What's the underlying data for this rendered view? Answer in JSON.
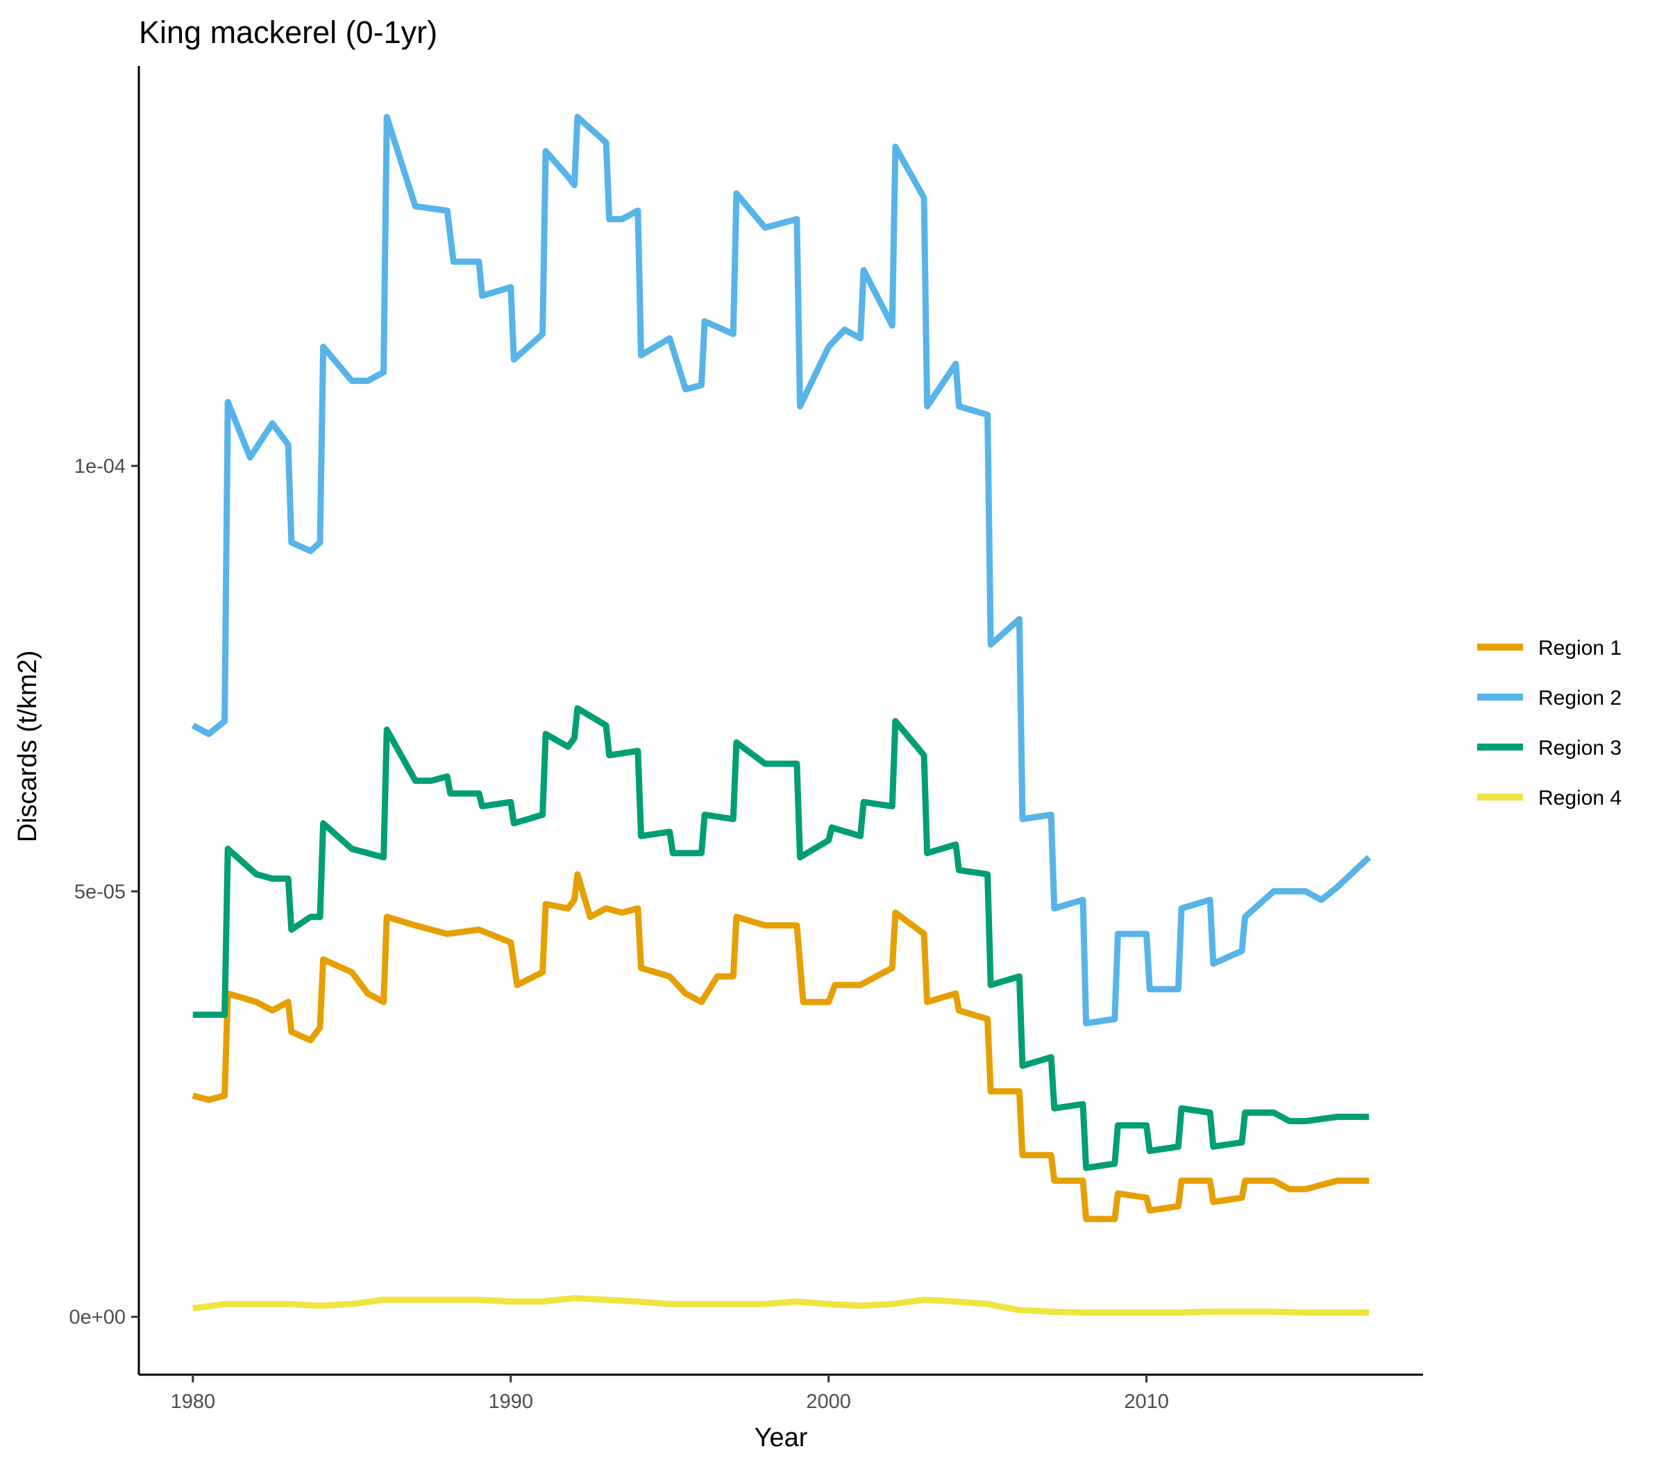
{
  "chart_data": {
    "type": "line",
    "title": "King mackerel (0-1yr)",
    "xlabel": "Year",
    "ylabel": "Discards (t/km2)",
    "xlim": [
      1978.3,
      2018.7
    ],
    "ylim": [
      -6.8e-06,
      0.000147
    ],
    "x_ticks": [
      1980,
      1990,
      2000,
      2010
    ],
    "x_tick_labels": [
      "1980",
      "1990",
      "2000",
      "2010"
    ],
    "y_ticks": [
      0,
      5e-05,
      0.0001
    ],
    "y_tick_labels": [
      "0e+00",
      "5e-05",
      "1e-04"
    ],
    "grid": false,
    "legend_position": "right",
    "series": [
      {
        "name": "Region 1",
        "color": "#E69F00",
        "points": [
          [
            1980.0,
            2.6e-05
          ],
          [
            1980.5,
            2.55e-05
          ],
          [
            1981.0,
            2.6e-05
          ],
          [
            1981.1,
            3.8e-05
          ],
          [
            1982.0,
            3.7e-05
          ],
          [
            1982.5,
            3.6e-05
          ],
          [
            1983.0,
            3.7e-05
          ],
          [
            1983.1,
            3.35e-05
          ],
          [
            1983.7,
            3.25e-05
          ],
          [
            1984.0,
            3.4e-05
          ],
          [
            1984.1,
            4.2e-05
          ],
          [
            1985.0,
            4.05e-05
          ],
          [
            1985.5,
            3.8e-05
          ],
          [
            1986.0,
            3.7e-05
          ],
          [
            1986.1,
            4.7e-05
          ],
          [
            1987.0,
            4.6e-05
          ],
          [
            1988.0,
            4.5e-05
          ],
          [
            1989.0,
            4.55e-05
          ],
          [
            1990.0,
            4.4e-05
          ],
          [
            1990.2,
            3.9e-05
          ],
          [
            1991.0,
            4.05e-05
          ],
          [
            1991.1,
            4.85e-05
          ],
          [
            1991.8,
            4.8e-05
          ],
          [
            1992.0,
            4.9e-05
          ],
          [
            1992.1,
            5.2e-05
          ],
          [
            1992.5,
            4.7e-05
          ],
          [
            1993.0,
            4.8e-05
          ],
          [
            1993.5,
            4.75e-05
          ],
          [
            1994.0,
            4.8e-05
          ],
          [
            1994.1,
            4.1e-05
          ],
          [
            1995.0,
            4e-05
          ],
          [
            1995.5,
            3.8e-05
          ],
          [
            1996.0,
            3.7e-05
          ],
          [
            1996.5,
            4e-05
          ],
          [
            1997.0,
            4e-05
          ],
          [
            1997.1,
            4.7e-05
          ],
          [
            1998.0,
            4.6e-05
          ],
          [
            1999.0,
            4.6e-05
          ],
          [
            1999.2,
            3.7e-05
          ],
          [
            2000.0,
            3.7e-05
          ],
          [
            2000.2,
            3.9e-05
          ],
          [
            2001.0,
            3.9e-05
          ],
          [
            2001.5,
            4e-05
          ],
          [
            2002.0,
            4.1e-05
          ],
          [
            2002.1,
            4.75e-05
          ],
          [
            2003.0,
            4.5e-05
          ],
          [
            2003.1,
            3.7e-05
          ],
          [
            2004.0,
            3.8e-05
          ],
          [
            2004.1,
            3.6e-05
          ],
          [
            2005.0,
            3.5e-05
          ],
          [
            2005.1,
            2.65e-05
          ],
          [
            2006.0,
            2.65e-05
          ],
          [
            2006.1,
            1.9e-05
          ],
          [
            2007.0,
            1.9e-05
          ],
          [
            2007.1,
            1.6e-05
          ],
          [
            2008.0,
            1.6e-05
          ],
          [
            2008.1,
            1.15e-05
          ],
          [
            2009.0,
            1.15e-05
          ],
          [
            2009.1,
            1.45e-05
          ],
          [
            2010.0,
            1.4e-05
          ],
          [
            2010.1,
            1.25e-05
          ],
          [
            2011.0,
            1.3e-05
          ],
          [
            2011.1,
            1.6e-05
          ],
          [
            2012.0,
            1.6e-05
          ],
          [
            2012.1,
            1.35e-05
          ],
          [
            2013.0,
            1.4e-05
          ],
          [
            2013.1,
            1.6e-05
          ],
          [
            2014.0,
            1.6e-05
          ],
          [
            2014.5,
            1.5e-05
          ],
          [
            2015.0,
            1.5e-05
          ],
          [
            2016.0,
            1.6e-05
          ],
          [
            2017.0,
            1.6e-05
          ]
        ]
      },
      {
        "name": "Region 2",
        "color": "#56B4E9",
        "points": [
          [
            1980.0,
            6.95e-05
          ],
          [
            1980.5,
            6.85e-05
          ],
          [
            1981.0,
            7e-05
          ],
          [
            1981.1,
            0.0001075
          ],
          [
            1981.8,
            0.000101
          ],
          [
            1982.5,
            0.000105
          ],
          [
            1983.0,
            0.0001025
          ],
          [
            1983.1,
            9.1e-05
          ],
          [
            1983.7,
            9e-05
          ],
          [
            1984.0,
            9.1e-05
          ],
          [
            1984.1,
            0.000114
          ],
          [
            1985.0,
            0.00011
          ],
          [
            1985.5,
            0.00011
          ],
          [
            1986.0,
            0.000111
          ],
          [
            1986.1,
            0.000141
          ],
          [
            1987.0,
            0.0001305
          ],
          [
            1988.0,
            0.00013
          ],
          [
            1988.2,
            0.000124
          ],
          [
            1989.0,
            0.000124
          ],
          [
            1989.1,
            0.00012
          ],
          [
            1990.0,
            0.000121
          ],
          [
            1990.1,
            0.0001125
          ],
          [
            1991.0,
            0.0001155
          ],
          [
            1991.1,
            0.000137
          ],
          [
            1991.8,
            0.000134
          ],
          [
            1992.0,
            0.000133
          ],
          [
            1992.1,
            0.000141
          ],
          [
            1993.0,
            0.000138
          ],
          [
            1993.1,
            0.000129
          ],
          [
            1993.5,
            0.000129
          ],
          [
            1994.0,
            0.00013
          ],
          [
            1994.1,
            0.000113
          ],
          [
            1995.0,
            0.000115
          ],
          [
            1995.5,
            0.000109
          ],
          [
            1996.0,
            0.0001095
          ],
          [
            1996.1,
            0.000117
          ],
          [
            1997.0,
            0.0001155
          ],
          [
            1997.1,
            0.000132
          ],
          [
            1998.0,
            0.000128
          ],
          [
            1999.0,
            0.000129
          ],
          [
            1999.1,
            0.000107
          ],
          [
            2000.0,
            0.000114
          ],
          [
            2000.5,
            0.000116
          ],
          [
            2001.0,
            0.000115
          ],
          [
            2001.1,
            0.000123
          ],
          [
            2002.0,
            0.0001165
          ],
          [
            2002.1,
            0.0001375
          ],
          [
            2003.0,
            0.0001315
          ],
          [
            2003.1,
            0.000107
          ],
          [
            2004.0,
            0.000112
          ],
          [
            2004.1,
            0.000107
          ],
          [
            2005.0,
            0.000106
          ],
          [
            2005.1,
            7.9e-05
          ],
          [
            2006.0,
            8.2e-05
          ],
          [
            2006.1,
            5.85e-05
          ],
          [
            2007.0,
            5.9e-05
          ],
          [
            2007.1,
            4.8e-05
          ],
          [
            2008.0,
            4.9e-05
          ],
          [
            2008.1,
            3.45e-05
          ],
          [
            2009.0,
            3.5e-05
          ],
          [
            2009.1,
            4.5e-05
          ],
          [
            2010.0,
            4.5e-05
          ],
          [
            2010.1,
            3.85e-05
          ],
          [
            2011.0,
            3.85e-05
          ],
          [
            2011.1,
            4.8e-05
          ],
          [
            2012.0,
            4.9e-05
          ],
          [
            2012.1,
            4.15e-05
          ],
          [
            2013.0,
            4.3e-05
          ],
          [
            2013.1,
            4.7e-05
          ],
          [
            2014.0,
            5e-05
          ],
          [
            2015.0,
            5e-05
          ],
          [
            2015.5,
            4.9e-05
          ],
          [
            2016.0,
            5.05e-05
          ],
          [
            2017.0,
            5.4e-05
          ]
        ]
      },
      {
        "name": "Region 3",
        "color": "#009E73",
        "points": [
          [
            1980.0,
            3.55e-05
          ],
          [
            1980.5,
            3.55e-05
          ],
          [
            1981.0,
            3.55e-05
          ],
          [
            1981.1,
            5.5e-05
          ],
          [
            1982.0,
            5.2e-05
          ],
          [
            1982.5,
            5.15e-05
          ],
          [
            1983.0,
            5.15e-05
          ],
          [
            1983.1,
            4.55e-05
          ],
          [
            1983.7,
            4.7e-05
          ],
          [
            1984.0,
            4.7e-05
          ],
          [
            1984.1,
            5.8e-05
          ],
          [
            1985.0,
            5.5e-05
          ],
          [
            1986.0,
            5.4e-05
          ],
          [
            1986.1,
            6.9e-05
          ],
          [
            1987.0,
            6.3e-05
          ],
          [
            1987.5,
            6.3e-05
          ],
          [
            1988.0,
            6.35e-05
          ],
          [
            1988.1,
            6.15e-05
          ],
          [
            1989.0,
            6.15e-05
          ],
          [
            1989.1,
            6e-05
          ],
          [
            1990.0,
            6.05e-05
          ],
          [
            1990.1,
            5.8e-05
          ],
          [
            1991.0,
            5.9e-05
          ],
          [
            1991.1,
            6.85e-05
          ],
          [
            1991.8,
            6.7e-05
          ],
          [
            1992.0,
            6.8e-05
          ],
          [
            1992.1,
            7.15e-05
          ],
          [
            1993.0,
            6.95e-05
          ],
          [
            1993.1,
            6.6e-05
          ],
          [
            1994.0,
            6.65e-05
          ],
          [
            1994.1,
            5.65e-05
          ],
          [
            1995.0,
            5.7e-05
          ],
          [
            1995.1,
            5.45e-05
          ],
          [
            1996.0,
            5.45e-05
          ],
          [
            1996.1,
            5.9e-05
          ],
          [
            1997.0,
            5.85e-05
          ],
          [
            1997.1,
            6.75e-05
          ],
          [
            1998.0,
            6.5e-05
          ],
          [
            1999.0,
            6.5e-05
          ],
          [
            1999.1,
            5.4e-05
          ],
          [
            2000.0,
            5.6e-05
          ],
          [
            2000.1,
            5.75e-05
          ],
          [
            2001.0,
            5.65e-05
          ],
          [
            2001.1,
            6.05e-05
          ],
          [
            2002.0,
            6e-05
          ],
          [
            2002.1,
            7e-05
          ],
          [
            2003.0,
            6.6e-05
          ],
          [
            2003.1,
            5.45e-05
          ],
          [
            2004.0,
            5.55e-05
          ],
          [
            2004.1,
            5.25e-05
          ],
          [
            2005.0,
            5.2e-05
          ],
          [
            2005.1,
            3.9e-05
          ],
          [
            2006.0,
            4e-05
          ],
          [
            2006.1,
            2.95e-05
          ],
          [
            2007.0,
            3.05e-05
          ],
          [
            2007.1,
            2.45e-05
          ],
          [
            2008.0,
            2.5e-05
          ],
          [
            2008.1,
            1.75e-05
          ],
          [
            2009.0,
            1.8e-05
          ],
          [
            2009.1,
            2.25e-05
          ],
          [
            2010.0,
            2.25e-05
          ],
          [
            2010.1,
            1.95e-05
          ],
          [
            2011.0,
            2e-05
          ],
          [
            2011.1,
            2.45e-05
          ],
          [
            2012.0,
            2.4e-05
          ],
          [
            2012.1,
            2e-05
          ],
          [
            2013.0,
            2.05e-05
          ],
          [
            2013.1,
            2.4e-05
          ],
          [
            2014.0,
            2.4e-05
          ],
          [
            2014.5,
            2.3e-05
          ],
          [
            2015.0,
            2.3e-05
          ],
          [
            2016.0,
            2.35e-05
          ],
          [
            2017.0,
            2.35e-05
          ]
        ]
      },
      {
        "name": "Region 4",
        "color": "#F0E442",
        "points": [
          [
            1980.0,
            1e-06
          ],
          [
            1981.0,
            1.5e-06
          ],
          [
            1982.0,
            1.5e-06
          ],
          [
            1983.0,
            1.5e-06
          ],
          [
            1984.0,
            1.3e-06
          ],
          [
            1985.0,
            1.5e-06
          ],
          [
            1986.0,
            2e-06
          ],
          [
            1987.0,
            2e-06
          ],
          [
            1988.0,
            2e-06
          ],
          [
            1989.0,
            2e-06
          ],
          [
            1990.0,
            1.8e-06
          ],
          [
            1991.0,
            1.8e-06
          ],
          [
            1992.0,
            2.2e-06
          ],
          [
            1993.0,
            2e-06
          ],
          [
            1994.0,
            1.8e-06
          ],
          [
            1995.0,
            1.5e-06
          ],
          [
            1996.0,
            1.5e-06
          ],
          [
            1997.0,
            1.5e-06
          ],
          [
            1998.0,
            1.5e-06
          ],
          [
            1999.0,
            1.8e-06
          ],
          [
            2000.0,
            1.5e-06
          ],
          [
            2001.0,
            1.3e-06
          ],
          [
            2002.0,
            1.5e-06
          ],
          [
            2003.0,
            2e-06
          ],
          [
            2004.0,
            1.8e-06
          ],
          [
            2005.0,
            1.5e-06
          ],
          [
            2006.0,
            8e-07
          ],
          [
            2007.0,
            6e-07
          ],
          [
            2008.0,
            5e-07
          ],
          [
            2009.0,
            5e-07
          ],
          [
            2010.0,
            5e-07
          ],
          [
            2011.0,
            5e-07
          ],
          [
            2012.0,
            6e-07
          ],
          [
            2013.0,
            6e-07
          ],
          [
            2014.0,
            6e-07
          ],
          [
            2015.0,
            5e-07
          ],
          [
            2016.0,
            5e-07
          ],
          [
            2017.0,
            5e-07
          ]
        ]
      }
    ]
  }
}
